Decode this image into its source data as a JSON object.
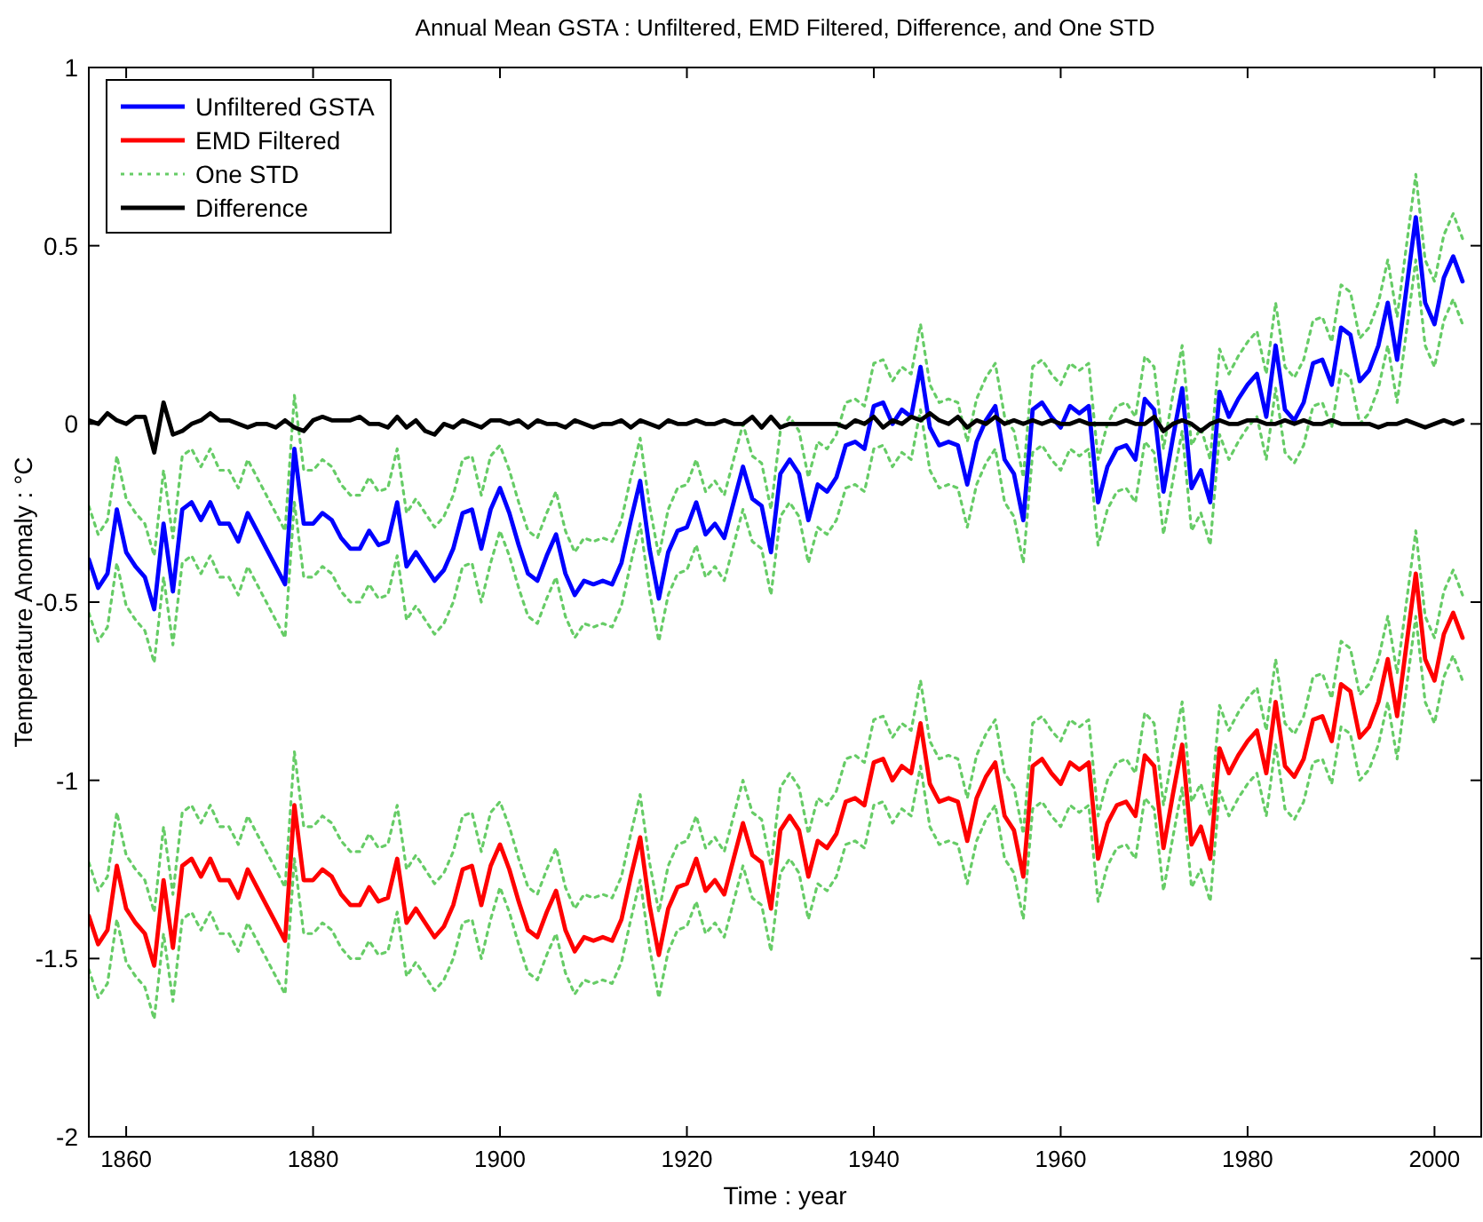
{
  "chart_data": {
    "type": "line",
    "title": "Annual Mean GSTA : Unfiltered, EMD Filtered, Difference, and One STD",
    "xlabel": "Time : year",
    "ylabel": "Temperature Anomaly : °C",
    "xlim": [
      1856,
      2005
    ],
    "xticks": [
      1860,
      1880,
      1900,
      1920,
      1940,
      1960,
      1980,
      2000
    ],
    "ylim": [
      -2,
      1
    ],
    "yticks": [
      -2,
      -1.5,
      -1,
      -0.5,
      0,
      0.5,
      1
    ],
    "grid": false,
    "legend": "top left",
    "x": [
      1856,
      1857,
      1858,
      1859,
      1860,
      1861,
      1862,
      1863,
      1864,
      1865,
      1866,
      1867,
      1868,
      1869,
      1870,
      1871,
      1872,
      1873,
      1874,
      1875,
      1876,
      1877,
      1878,
      1879,
      1880,
      1881,
      1882,
      1883,
      1884,
      1885,
      1886,
      1887,
      1888,
      1889,
      1890,
      1891,
      1892,
      1893,
      1894,
      1895,
      1896,
      1897,
      1898,
      1899,
      1900,
      1901,
      1902,
      1903,
      1904,
      1905,
      1906,
      1907,
      1908,
      1909,
      1910,
      1911,
      1912,
      1913,
      1914,
      1915,
      1916,
      1917,
      1918,
      1919,
      1920,
      1921,
      1922,
      1923,
      1924,
      1925,
      1926,
      1927,
      1928,
      1929,
      1930,
      1931,
      1932,
      1933,
      1934,
      1935,
      1936,
      1937,
      1938,
      1939,
      1940,
      1941,
      1942,
      1943,
      1944,
      1945,
      1946,
      1947,
      1948,
      1949,
      1950,
      1951,
      1952,
      1953,
      1954,
      1955,
      1956,
      1957,
      1958,
      1959,
      1960,
      1961,
      1962,
      1963,
      1964,
      1965,
      1966,
      1967,
      1968,
      1969,
      1970,
      1971,
      1972,
      1973,
      1974,
      1975,
      1976,
      1977,
      1978,
      1979,
      1980,
      1981,
      1982,
      1983,
      1984,
      1985,
      1986,
      1987,
      1988,
      1989,
      1990,
      1991,
      1992,
      1993,
      1994,
      1995,
      1996,
      1997,
      1998,
      1999,
      2000,
      2001,
      2002,
      2003
    ],
    "series": [
      {
        "name": "Unfiltered GSTA",
        "color": "#0000ff",
        "line_style": "solid",
        "values": [
          -0.38,
          -0.46,
          -0.42,
          -0.24,
          -0.36,
          -0.4,
          -0.43,
          -0.52,
          -0.28,
          -0.47,
          -0.24,
          -0.22,
          -0.27,
          -0.22,
          -0.28,
          -0.28,
          -0.33,
          -0.25,
          -0.3,
          -0.35,
          -0.4,
          -0.45,
          -0.07,
          -0.28,
          -0.28,
          -0.25,
          -0.27,
          -0.32,
          -0.35,
          -0.35,
          -0.3,
          -0.34,
          -0.33,
          -0.22,
          -0.4,
          -0.36,
          -0.4,
          -0.44,
          -0.41,
          -0.35,
          -0.25,
          -0.24,
          -0.35,
          -0.24,
          -0.18,
          -0.25,
          -0.34,
          -0.42,
          -0.44,
          -0.37,
          -0.31,
          -0.42,
          -0.48,
          -0.44,
          -0.45,
          -0.44,
          -0.45,
          -0.39,
          -0.27,
          -0.16,
          -0.35,
          -0.49,
          -0.36,
          -0.3,
          -0.29,
          -0.22,
          -0.31,
          -0.28,
          -0.32,
          -0.22,
          -0.12,
          -0.21,
          -0.23,
          -0.36,
          -0.14,
          -0.1,
          -0.14,
          -0.27,
          -0.17,
          -0.19,
          -0.15,
          -0.06,
          -0.05,
          -0.07,
          0.05,
          0.06,
          0.0,
          0.04,
          0.02,
          0.16,
          -0.01,
          -0.06,
          -0.05,
          -0.06,
          -0.17,
          -0.05,
          0.01,
          0.05,
          -0.1,
          -0.14,
          -0.27,
          0.04,
          0.06,
          0.02,
          -0.01,
          0.05,
          0.03,
          0.05,
          -0.22,
          -0.12,
          -0.07,
          -0.06,
          -0.1,
          0.07,
          0.04,
          -0.19,
          -0.04,
          0.1,
          -0.18,
          -0.13,
          -0.22,
          0.09,
          0.02,
          0.07,
          0.11,
          0.14,
          0.02,
          0.22,
          0.04,
          0.01,
          0.06,
          0.17,
          0.18,
          0.11,
          0.27,
          0.25,
          0.12,
          0.15,
          0.22,
          0.34,
          0.18,
          0.38,
          0.58,
          0.34,
          0.28,
          0.41,
          0.47,
          0.4
        ]
      },
      {
        "name": "EMD Filtered",
        "color": "#ff0000",
        "line_style": "solid",
        "values": [
          -1.38,
          -1.46,
          -1.42,
          -1.24,
          -1.36,
          -1.4,
          -1.43,
          -1.52,
          -1.28,
          -1.47,
          -1.24,
          -1.22,
          -1.27,
          -1.22,
          -1.28,
          -1.28,
          -1.33,
          -1.25,
          -1.3,
          -1.35,
          -1.4,
          -1.45,
          -1.07,
          -1.28,
          -1.28,
          -1.25,
          -1.27,
          -1.32,
          -1.35,
          -1.35,
          -1.3,
          -1.34,
          -1.33,
          -1.22,
          -1.4,
          -1.36,
          -1.4,
          -1.44,
          -1.41,
          -1.35,
          -1.25,
          -1.24,
          -1.35,
          -1.24,
          -1.18,
          -1.25,
          -1.34,
          -1.42,
          -1.44,
          -1.37,
          -1.31,
          -1.42,
          -1.48,
          -1.44,
          -1.45,
          -1.44,
          -1.45,
          -1.39,
          -1.27,
          -1.16,
          -1.35,
          -1.49,
          -1.36,
          -1.3,
          -1.29,
          -1.22,
          -1.31,
          -1.28,
          -1.32,
          -1.22,
          -1.12,
          -1.21,
          -1.23,
          -1.36,
          -1.14,
          -1.1,
          -1.14,
          -1.27,
          -1.17,
          -1.19,
          -1.15,
          -1.06,
          -1.05,
          -1.07,
          -0.95,
          -0.94,
          -1.0,
          -0.96,
          -0.98,
          -0.84,
          -1.01,
          -1.06,
          -1.05,
          -1.06,
          -1.17,
          -1.05,
          -0.99,
          -0.95,
          -1.1,
          -1.14,
          -1.27,
          -0.96,
          -0.94,
          -0.98,
          -1.01,
          -0.95,
          -0.97,
          -0.95,
          -1.22,
          -1.12,
          -1.07,
          -1.06,
          -1.1,
          -0.93,
          -0.96,
          -1.19,
          -1.04,
          -0.9,
          -1.18,
          -1.13,
          -1.22,
          -0.91,
          -0.98,
          -0.93,
          -0.89,
          -0.86,
          -0.98,
          -0.78,
          -0.96,
          -0.99,
          -0.94,
          -0.83,
          -0.82,
          -0.89,
          -0.73,
          -0.75,
          -0.88,
          -0.85,
          -0.78,
          -0.66,
          -0.82,
          -0.62,
          -0.42,
          -0.66,
          -0.72,
          -0.59,
          -0.53,
          -0.6
        ]
      },
      {
        "name": "One STD",
        "color": "#66cc66",
        "line_style": "dotted",
        "values": [
          -0.23,
          -0.31,
          -0.27,
          -0.09,
          -0.21,
          -0.25,
          -0.28,
          -0.37,
          -0.13,
          -0.32,
          -0.09,
          -0.07,
          -0.12,
          -0.07,
          -0.13,
          -0.13,
          -0.18,
          -0.1,
          -0.15,
          -0.2,
          -0.25,
          -0.3,
          0.08,
          -0.13,
          -0.13,
          -0.1,
          -0.12,
          -0.17,
          -0.2,
          -0.2,
          -0.15,
          -0.19,
          -0.18,
          -0.07,
          -0.25,
          -0.21,
          -0.25,
          -0.29,
          -0.26,
          -0.2,
          -0.1,
          -0.09,
          -0.2,
          -0.09,
          -0.06,
          -0.13,
          -0.22,
          -0.3,
          -0.32,
          -0.25,
          -0.19,
          -0.3,
          -0.36,
          -0.32,
          -0.33,
          -0.32,
          -0.33,
          -0.27,
          -0.15,
          -0.04,
          -0.23,
          -0.37,
          -0.24,
          -0.18,
          -0.17,
          -0.1,
          -0.19,
          -0.16,
          -0.2,
          -0.1,
          0.0,
          -0.09,
          -0.11,
          -0.24,
          -0.02,
          0.02,
          -0.02,
          -0.15,
          -0.05,
          -0.07,
          -0.03,
          0.06,
          0.07,
          0.05,
          0.17,
          0.18,
          0.12,
          0.16,
          0.14,
          0.28,
          0.11,
          0.06,
          0.07,
          0.06,
          -0.05,
          0.07,
          0.13,
          0.17,
          0.02,
          -0.02,
          -0.15,
          0.16,
          0.18,
          0.14,
          0.11,
          0.17,
          0.15,
          0.17,
          -0.1,
          0.0,
          0.05,
          0.06,
          0.02,
          0.19,
          0.16,
          -0.07,
          0.08,
          0.22,
          -0.06,
          -0.01,
          -0.1,
          0.21,
          0.14,
          0.19,
          0.23,
          0.26,
          0.14,
          0.34,
          0.16,
          0.13,
          0.18,
          0.29,
          0.3,
          0.23,
          0.39,
          0.37,
          0.24,
          0.27,
          0.34,
          0.46,
          0.3,
          0.5,
          0.7,
          0.46,
          0.4,
          0.53,
          0.59,
          0.52
        ]
      },
      {
        "name": "Difference",
        "color": "#000000",
        "line_style": "solid",
        "values": [
          0.01,
          0.0,
          0.03,
          0.01,
          0.0,
          0.02,
          0.02,
          -0.08,
          0.06,
          -0.03,
          -0.02,
          0.0,
          0.01,
          0.03,
          0.01,
          0.01,
          0.0,
          -0.01,
          0.0,
          0.0,
          -0.01,
          0.01,
          -0.01,
          -0.02,
          0.01,
          0.02,
          0.01,
          0.01,
          0.01,
          0.02,
          0.0,
          0.0,
          -0.01,
          0.02,
          -0.01,
          0.01,
          -0.02,
          -0.03,
          0.0,
          -0.01,
          0.01,
          0.0,
          -0.01,
          0.01,
          0.01,
          0.0,
          0.01,
          -0.01,
          0.01,
          0.0,
          0.0,
          -0.01,
          0.01,
          0.0,
          -0.01,
          0.0,
          0.0,
          0.01,
          -0.01,
          0.01,
          0.0,
          -0.01,
          0.01,
          0.0,
          0.0,
          0.01,
          0.0,
          0.0,
          0.01,
          0.0,
          0.0,
          0.02,
          -0.01,
          0.02,
          -0.01,
          0.0,
          0.0,
          0.0,
          0.0,
          0.0,
          0.0,
          -0.01,
          0.01,
          0.0,
          0.02,
          -0.01,
          0.01,
          0.0,
          0.02,
          0.01,
          0.03,
          0.01,
          0.0,
          0.02,
          -0.01,
          0.01,
          0.0,
          0.02,
          0.0,
          0.01,
          0.0,
          0.01,
          0.0,
          0.01,
          0.0,
          0.0,
          0.01,
          0.0,
          0.0,
          0.0,
          0.0,
          0.01,
          0.0,
          0.0,
          0.02,
          -0.02,
          0.0,
          0.01,
          0.0,
          -0.02,
          0.0,
          0.01,
          0.0,
          0.0,
          0.01,
          0.01,
          0.0,
          0.0,
          0.01,
          0.0,
          0.01,
          0.0,
          0.0,
          0.01,
          0.0,
          0.0,
          0.0,
          0.0,
          -0.01,
          0.0,
          0.0,
          0.01,
          0.0,
          -0.01,
          0.0,
          0.01,
          0.0,
          0.01
        ]
      },
      {
        "color": "#66cc66",
        "line_style": "dotted",
        "values": [
          -0.53,
          -0.61,
          -0.57,
          -0.39,
          -0.51,
          -0.55,
          -0.58,
          -0.67,
          -0.43,
          -0.62,
          -0.39,
          -0.37,
          -0.42,
          -0.37,
          -0.43,
          -0.43,
          -0.48,
          -0.4,
          -0.45,
          -0.5,
          -0.55,
          -0.6,
          -0.22,
          -0.43,
          -0.43,
          -0.4,
          -0.42,
          -0.47,
          -0.5,
          -0.5,
          -0.45,
          -0.49,
          -0.48,
          -0.37,
          -0.55,
          -0.51,
          -0.55,
          -0.59,
          -0.56,
          -0.5,
          -0.4,
          -0.39,
          -0.5,
          -0.39,
          -0.3,
          -0.37,
          -0.46,
          -0.54,
          -0.56,
          -0.49,
          -0.43,
          -0.54,
          -0.6,
          -0.56,
          -0.57,
          -0.56,
          -0.57,
          -0.51,
          -0.39,
          -0.28,
          -0.47,
          -0.61,
          -0.48,
          -0.42,
          -0.41,
          -0.34,
          -0.43,
          -0.4,
          -0.44,
          -0.34,
          -0.24,
          -0.33,
          -0.35,
          -0.48,
          -0.26,
          -0.22,
          -0.26,
          -0.39,
          -0.29,
          -0.31,
          -0.27,
          -0.18,
          -0.17,
          -0.19,
          -0.07,
          -0.06,
          -0.12,
          -0.08,
          -0.1,
          0.04,
          -0.13,
          -0.18,
          -0.17,
          -0.18,
          -0.29,
          -0.17,
          -0.11,
          -0.07,
          -0.22,
          -0.26,
          -0.39,
          -0.08,
          -0.06,
          -0.1,
          -0.13,
          -0.07,
          -0.09,
          -0.07,
          -0.34,
          -0.24,
          -0.19,
          -0.18,
          -0.22,
          -0.05,
          -0.08,
          -0.31,
          -0.16,
          -0.02,
          -0.3,
          -0.25,
          -0.34,
          -0.03,
          -0.1,
          -0.05,
          -0.01,
          0.02,
          -0.1,
          0.1,
          -0.08,
          -0.11,
          -0.06,
          0.05,
          0.06,
          -0.01,
          0.15,
          0.13,
          0.0,
          0.03,
          0.1,
          0.22,
          0.06,
          0.26,
          0.46,
          0.22,
          0.16,
          0.29,
          0.35,
          0.28
        ]
      },
      {
        "color": "#66cc66",
        "line_style": "dotted",
        "values": [
          -1.23,
          -1.31,
          -1.27,
          -1.09,
          -1.21,
          -1.25,
          -1.28,
          -1.37,
          -1.13,
          -1.32,
          -1.09,
          -1.07,
          -1.12,
          -1.07,
          -1.13,
          -1.13,
          -1.18,
          -1.1,
          -1.15,
          -1.2,
          -1.25,
          -1.3,
          -0.92,
          -1.13,
          -1.13,
          -1.1,
          -1.12,
          -1.17,
          -1.2,
          -1.2,
          -1.15,
          -1.19,
          -1.18,
          -1.07,
          -1.25,
          -1.21,
          -1.25,
          -1.29,
          -1.26,
          -1.2,
          -1.1,
          -1.09,
          -1.2,
          -1.09,
          -1.06,
          -1.13,
          -1.22,
          -1.3,
          -1.32,
          -1.25,
          -1.19,
          -1.3,
          -1.36,
          -1.32,
          -1.33,
          -1.32,
          -1.33,
          -1.27,
          -1.15,
          -1.04,
          -1.23,
          -1.37,
          -1.24,
          -1.18,
          -1.17,
          -1.1,
          -1.19,
          -1.16,
          -1.2,
          -1.1,
          -1.0,
          -1.09,
          -1.11,
          -1.24,
          -1.02,
          -0.98,
          -1.02,
          -1.15,
          -1.05,
          -1.07,
          -1.03,
          -0.94,
          -0.93,
          -0.95,
          -0.83,
          -0.82,
          -0.88,
          -0.84,
          -0.86,
          -0.72,
          -0.89,
          -0.94,
          -0.93,
          -0.94,
          -1.05,
          -0.93,
          -0.87,
          -0.83,
          -0.98,
          -1.02,
          -1.15,
          -0.84,
          -0.82,
          -0.86,
          -0.89,
          -0.83,
          -0.85,
          -0.83,
          -1.1,
          -1.0,
          -0.95,
          -0.94,
          -0.98,
          -0.81,
          -0.84,
          -1.07,
          -0.92,
          -0.78,
          -1.06,
          -1.01,
          -1.1,
          -0.79,
          -0.86,
          -0.81,
          -0.77,
          -0.74,
          -0.86,
          -0.66,
          -0.84,
          -0.87,
          -0.82,
          -0.71,
          -0.7,
          -0.77,
          -0.61,
          -0.63,
          -0.76,
          -0.73,
          -0.66,
          -0.54,
          -0.7,
          -0.5,
          -0.3,
          -0.54,
          -0.6,
          -0.47,
          -0.41,
          -0.48
        ]
      },
      {
        "color": "#66cc66",
        "line_style": "dotted",
        "values": [
          -1.53,
          -1.61,
          -1.57,
          -1.39,
          -1.51,
          -1.55,
          -1.58,
          -1.67,
          -1.43,
          -1.62,
          -1.39,
          -1.37,
          -1.42,
          -1.37,
          -1.43,
          -1.43,
          -1.48,
          -1.4,
          -1.45,
          -1.5,
          -1.55,
          -1.6,
          -1.22,
          -1.43,
          -1.43,
          -1.4,
          -1.42,
          -1.47,
          -1.5,
          -1.5,
          -1.45,
          -1.49,
          -1.48,
          -1.37,
          -1.55,
          -1.51,
          -1.55,
          -1.59,
          -1.56,
          -1.5,
          -1.4,
          -1.39,
          -1.5,
          -1.39,
          -1.3,
          -1.37,
          -1.46,
          -1.54,
          -1.56,
          -1.49,
          -1.43,
          -1.54,
          -1.6,
          -1.56,
          -1.57,
          -1.56,
          -1.57,
          -1.51,
          -1.39,
          -1.28,
          -1.47,
          -1.61,
          -1.48,
          -1.42,
          -1.41,
          -1.34,
          -1.43,
          -1.4,
          -1.44,
          -1.34,
          -1.24,
          -1.33,
          -1.35,
          -1.48,
          -1.26,
          -1.22,
          -1.26,
          -1.39,
          -1.29,
          -1.31,
          -1.27,
          -1.18,
          -1.17,
          -1.19,
          -1.07,
          -1.06,
          -1.12,
          -1.08,
          -1.1,
          -0.96,
          -1.13,
          -1.18,
          -1.17,
          -1.18,
          -1.29,
          -1.17,
          -1.11,
          -1.07,
          -1.22,
          -1.26,
          -1.39,
          -1.08,
          -1.06,
          -1.1,
          -1.13,
          -1.07,
          -1.09,
          -1.07,
          -1.34,
          -1.24,
          -1.19,
          -1.18,
          -1.22,
          -1.05,
          -1.08,
          -1.31,
          -1.16,
          -1.02,
          -1.3,
          -1.25,
          -1.34,
          -1.03,
          -1.1,
          -1.05,
          -1.01,
          -0.98,
          -1.1,
          -0.9,
          -1.08,
          -1.11,
          -1.06,
          -0.95,
          -0.94,
          -1.01,
          -0.85,
          -0.87,
          -1.0,
          -0.97,
          -0.9,
          -0.78,
          -0.94,
          -0.74,
          -0.54,
          -0.78,
          -0.84,
          -0.71,
          -0.65,
          -0.72
        ]
      }
    ]
  }
}
